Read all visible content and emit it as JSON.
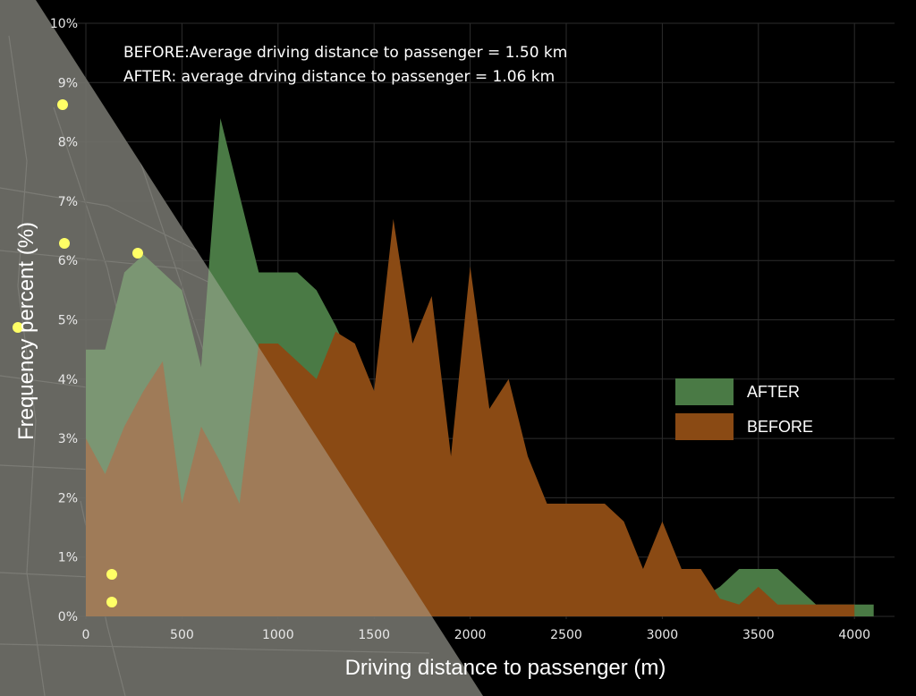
{
  "chart_data": {
    "type": "area",
    "xlabel": "Driving distance to passenger (m)",
    "ylabel": "Frequency percent (%)",
    "xlim": [
      0,
      4100
    ],
    "ylim": [
      0,
      10
    ],
    "x_ticks": [
      "0",
      "500",
      "1000",
      "1500",
      "2000",
      "2500",
      "3000",
      "3500",
      "4000"
    ],
    "y_ticks": [
      "0%",
      "1%",
      "2%",
      "3%",
      "4%",
      "5%",
      "6%",
      "7%",
      "8%",
      "9%",
      "10%"
    ],
    "annotations": [
      "BEFORE:Average driving distance to passenger  = 1.50 km",
      "AFTER: average drving distance to passenger  = 1.06 km"
    ],
    "legend_position": "right",
    "grid": true,
    "series": [
      {
        "name": "AFTER",
        "color": "#4a7a45",
        "x": [
          0,
          100,
          200,
          300,
          400,
          500,
          600,
          700,
          800,
          900,
          1000,
          1100,
          1200,
          1300,
          1400,
          1500,
          1600,
          1700,
          1800,
          1900,
          2000,
          2100,
          2200,
          2300,
          2400,
          2500,
          2600,
          2700,
          2800,
          2900,
          3000,
          3100,
          3200,
          3300,
          3400,
          3500,
          3600,
          3700,
          3800,
          3900,
          4000,
          4100
        ],
        "values": [
          4.5,
          4.5,
          5.8,
          6.1,
          5.8,
          5.5,
          4.2,
          8.4,
          7.1,
          5.8,
          5.8,
          5.8,
          5.5,
          4.9,
          4.2,
          3.5,
          3.2,
          2.1,
          1.8,
          1.6,
          1.6,
          1.3,
          0.8,
          0.5,
          0.8,
          0.2,
          1.1,
          0.2,
          0.5,
          0.8,
          0.2,
          0.2,
          0.3,
          0.5,
          0.8,
          0.8,
          0.8,
          0.5,
          0.2,
          0.2,
          0.2,
          0.2
        ]
      },
      {
        "name": "BEFORE",
        "color": "#8a4a14",
        "x": [
          0,
          100,
          200,
          300,
          400,
          500,
          600,
          700,
          800,
          900,
          1000,
          1100,
          1200,
          1300,
          1400,
          1500,
          1600,
          1700,
          1800,
          1900,
          2000,
          2100,
          2200,
          2300,
          2400,
          2500,
          2600,
          2700,
          2800,
          2900,
          3000,
          3100,
          3200,
          3300,
          3400,
          3500,
          3600,
          3700,
          3800,
          3900,
          4000
        ],
        "values": [
          3.0,
          2.4,
          3.2,
          3.8,
          4.3,
          1.9,
          3.2,
          2.6,
          1.9,
          4.6,
          4.6,
          4.3,
          4.0,
          4.8,
          4.6,
          3.8,
          6.7,
          4.6,
          5.4,
          2.7,
          5.9,
          3.5,
          4.0,
          2.7,
          1.9,
          1.9,
          1.9,
          1.9,
          1.6,
          0.8,
          1.6,
          0.8,
          0.8,
          0.3,
          0.2,
          0.5,
          0.2,
          0.2,
          0.2,
          0.2,
          0.2
        ]
      }
    ],
    "map_dots": {
      "color": "#ffff66"
    }
  }
}
